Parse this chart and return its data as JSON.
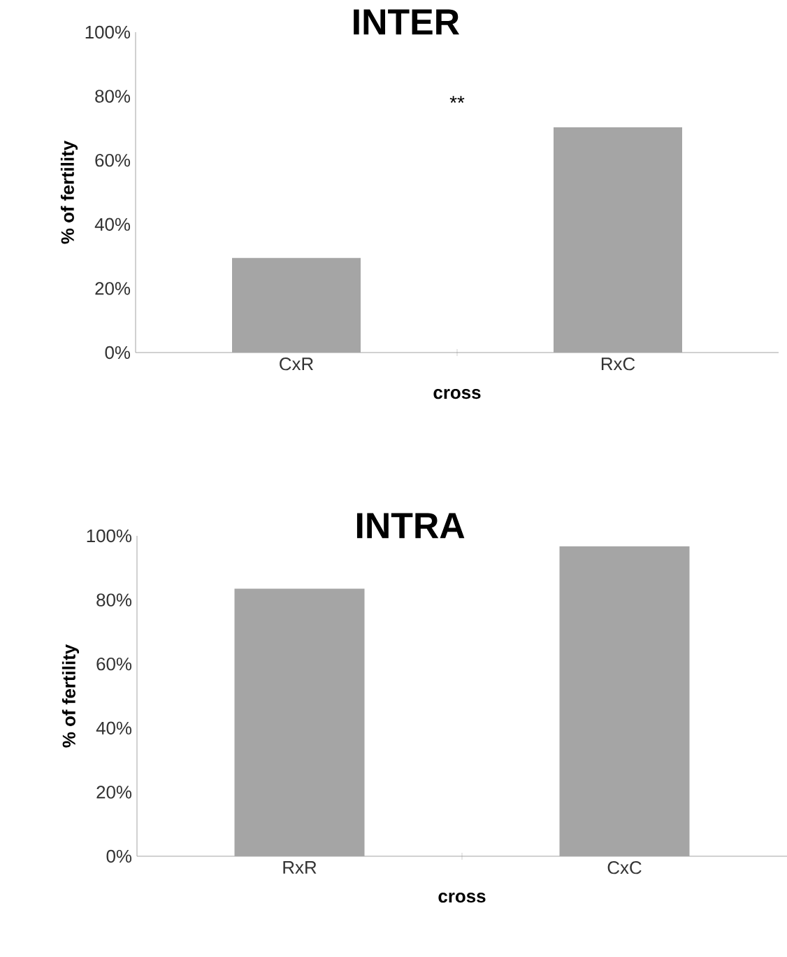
{
  "chart_data": [
    {
      "type": "bar",
      "title": "INTER",
      "xlabel": "cross",
      "ylabel": "% of fertility",
      "categories": [
        "CxR",
        "RxC"
      ],
      "values": [
        29.5,
        70.3
      ],
      "color": "#a5a5a5",
      "ylim": [
        0,
        100
      ],
      "yticks": [
        {
          "value": 0,
          "label": "0%"
        },
        {
          "value": 20,
          "label": "20%"
        },
        {
          "value": 40,
          "label": "40%"
        },
        {
          "value": 60,
          "label": "60%"
        },
        {
          "value": 80,
          "label": "80%"
        },
        {
          "value": 100,
          "label": "100%"
        }
      ],
      "annotations": [
        "**"
      ]
    },
    {
      "type": "bar",
      "title": "INTRA",
      "xlabel": "cross",
      "ylabel": "% of fertility",
      "categories": [
        "RxR",
        "CxC"
      ],
      "values": [
        83.5,
        96.7
      ],
      "color": "#a5a5a5",
      "ylim": [
        0,
        100
      ],
      "yticks": [
        {
          "value": 0,
          "label": "0%"
        },
        {
          "value": 20,
          "label": "20%"
        },
        {
          "value": 40,
          "label": "40%"
        },
        {
          "value": 60,
          "label": "60%"
        },
        {
          "value": 80,
          "label": "80%"
        },
        {
          "value": 100,
          "label": "100%"
        }
      ]
    }
  ]
}
